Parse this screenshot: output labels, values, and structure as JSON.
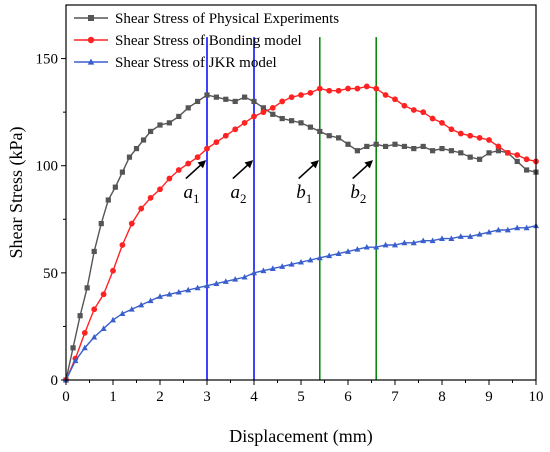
{
  "chart_data": {
    "type": "line",
    "xlabel": "Displacement (mm)",
    "ylabel": "Shear Stress (kPa)",
    "xlim": [
      0,
      10
    ],
    "ylim": [
      0,
      175
    ],
    "x_ticks": [
      0,
      1,
      2,
      3,
      4,
      5,
      6,
      7,
      8,
      9,
      10
    ],
    "y_ticks": [
      0,
      50,
      100,
      150
    ],
    "grid": false,
    "legend_position": "top-left",
    "series": [
      {
        "name": "Shear Stress of Physical Experiments",
        "color": "#555555",
        "marker": "square",
        "points": [
          [
            0,
            0
          ],
          [
            0.15,
            15
          ],
          [
            0.3,
            30
          ],
          [
            0.45,
            43
          ],
          [
            0.6,
            60
          ],
          [
            0.75,
            73
          ],
          [
            0.9,
            84
          ],
          [
            1.05,
            90
          ],
          [
            1.2,
            97
          ],
          [
            1.35,
            104
          ],
          [
            1.5,
            108
          ],
          [
            1.65,
            112
          ],
          [
            1.8,
            116
          ],
          [
            2.0,
            119
          ],
          [
            2.2,
            120
          ],
          [
            2.4,
            123
          ],
          [
            2.6,
            127
          ],
          [
            2.8,
            130
          ],
          [
            3.0,
            133
          ],
          [
            3.2,
            132
          ],
          [
            3.4,
            131
          ],
          [
            3.6,
            130
          ],
          [
            3.8,
            132
          ],
          [
            4.0,
            130
          ],
          [
            4.2,
            127
          ],
          [
            4.4,
            124
          ],
          [
            4.6,
            122
          ],
          [
            4.8,
            121
          ],
          [
            5.0,
            120
          ],
          [
            5.2,
            118
          ],
          [
            5.4,
            116
          ],
          [
            5.6,
            114
          ],
          [
            5.8,
            113
          ],
          [
            6.0,
            110
          ],
          [
            6.2,
            107
          ],
          [
            6.4,
            109
          ],
          [
            6.6,
            110
          ],
          [
            6.8,
            109
          ],
          [
            7.0,
            110
          ],
          [
            7.2,
            109
          ],
          [
            7.4,
            108
          ],
          [
            7.6,
            109
          ],
          [
            7.8,
            107
          ],
          [
            8.0,
            108
          ],
          [
            8.2,
            107
          ],
          [
            8.4,
            106
          ],
          [
            8.6,
            104
          ],
          [
            8.8,
            103
          ],
          [
            9.0,
            106
          ],
          [
            9.2,
            107
          ],
          [
            9.4,
            106
          ],
          [
            9.6,
            102
          ],
          [
            9.8,
            98
          ],
          [
            10.0,
            97
          ]
        ]
      },
      {
        "name": "Shear Stress of Bonding model",
        "color": "#ff2222",
        "marker": "circle",
        "points": [
          [
            0,
            0
          ],
          [
            0.2,
            10
          ],
          [
            0.4,
            22
          ],
          [
            0.6,
            33
          ],
          [
            0.8,
            40
          ],
          [
            1.0,
            51
          ],
          [
            1.2,
            63
          ],
          [
            1.4,
            73
          ],
          [
            1.6,
            80
          ],
          [
            1.8,
            85
          ],
          [
            2.0,
            89
          ],
          [
            2.2,
            94
          ],
          [
            2.4,
            98
          ],
          [
            2.6,
            101
          ],
          [
            2.8,
            104
          ],
          [
            3.0,
            108
          ],
          [
            3.2,
            111
          ],
          [
            3.4,
            114
          ],
          [
            3.6,
            117
          ],
          [
            3.8,
            120
          ],
          [
            4.0,
            123
          ],
          [
            4.2,
            125
          ],
          [
            4.4,
            127
          ],
          [
            4.6,
            130
          ],
          [
            4.8,
            132
          ],
          [
            5.0,
            133
          ],
          [
            5.2,
            134
          ],
          [
            5.4,
            136
          ],
          [
            5.6,
            135
          ],
          [
            5.8,
            135
          ],
          [
            6.0,
            136
          ],
          [
            6.2,
            136
          ],
          [
            6.4,
            137
          ],
          [
            6.6,
            136
          ],
          [
            6.8,
            133
          ],
          [
            7.0,
            131
          ],
          [
            7.2,
            128
          ],
          [
            7.4,
            126
          ],
          [
            7.6,
            125
          ],
          [
            7.8,
            122
          ],
          [
            8.0,
            120
          ],
          [
            8.2,
            117
          ],
          [
            8.4,
            115
          ],
          [
            8.6,
            114
          ],
          [
            8.8,
            113
          ],
          [
            9.0,
            112
          ],
          [
            9.2,
            109
          ],
          [
            9.4,
            106
          ],
          [
            9.6,
            105
          ],
          [
            9.8,
            103
          ],
          [
            10.0,
            102
          ]
        ]
      },
      {
        "name": "Shear Stress of JKR model",
        "color": "#3a5fcd",
        "marker": "triangle",
        "points": [
          [
            0,
            0
          ],
          [
            0.2,
            9
          ],
          [
            0.4,
            15
          ],
          [
            0.6,
            20
          ],
          [
            0.8,
            24
          ],
          [
            1.0,
            28
          ],
          [
            1.2,
            31
          ],
          [
            1.4,
            33
          ],
          [
            1.6,
            35
          ],
          [
            1.8,
            37
          ],
          [
            2.0,
            39
          ],
          [
            2.2,
            40
          ],
          [
            2.4,
            41
          ],
          [
            2.6,
            42
          ],
          [
            2.8,
            43
          ],
          [
            3.0,
            44
          ],
          [
            3.2,
            45
          ],
          [
            3.4,
            46
          ],
          [
            3.6,
            47
          ],
          [
            3.8,
            48
          ],
          [
            4.0,
            50
          ],
          [
            4.2,
            51
          ],
          [
            4.4,
            52
          ],
          [
            4.6,
            53
          ],
          [
            4.8,
            54
          ],
          [
            5.0,
            55
          ],
          [
            5.2,
            56
          ],
          [
            5.4,
            57
          ],
          [
            5.6,
            58
          ],
          [
            5.8,
            59
          ],
          [
            6.0,
            60
          ],
          [
            6.2,
            61
          ],
          [
            6.4,
            62
          ],
          [
            6.6,
            62
          ],
          [
            6.8,
            63
          ],
          [
            7.0,
            63
          ],
          [
            7.2,
            64
          ],
          [
            7.4,
            64
          ],
          [
            7.6,
            65
          ],
          [
            7.8,
            65
          ],
          [
            8.0,
            66
          ],
          [
            8.2,
            66
          ],
          [
            8.4,
            67
          ],
          [
            8.6,
            67
          ],
          [
            8.8,
            68
          ],
          [
            9.0,
            69
          ],
          [
            9.2,
            70
          ],
          [
            9.4,
            70
          ],
          [
            9.6,
            71
          ],
          [
            9.8,
            71
          ],
          [
            10.0,
            72
          ]
        ]
      }
    ],
    "vertical_lines": [
      {
        "x": 3.0,
        "color": "#0000ff"
      },
      {
        "x": 4.0,
        "color": "#0000ff"
      },
      {
        "x": 5.4,
        "color": "#008000"
      },
      {
        "x": 6.6,
        "color": "#008000"
      }
    ],
    "annotations": [
      {
        "letter": "a",
        "sub": "1",
        "text_x": 2.5,
        "text_y": 85,
        "arrow_from": [
          2.55,
          94
        ],
        "arrow_to": [
          2.95,
          102
        ]
      },
      {
        "letter": "a",
        "sub": "2",
        "text_x": 3.5,
        "text_y": 85,
        "arrow_from": [
          3.55,
          94
        ],
        "arrow_to": [
          3.95,
          102
        ]
      },
      {
        "letter": "b",
        "sub": "1",
        "text_x": 4.9,
        "text_y": 85,
        "arrow_from": [
          4.95,
          94
        ],
        "arrow_to": [
          5.35,
          102
        ]
      },
      {
        "letter": "b",
        "sub": "2",
        "text_x": 6.05,
        "text_y": 85,
        "arrow_from": [
          6.1,
          94
        ],
        "arrow_to": [
          6.5,
          102
        ]
      }
    ]
  }
}
